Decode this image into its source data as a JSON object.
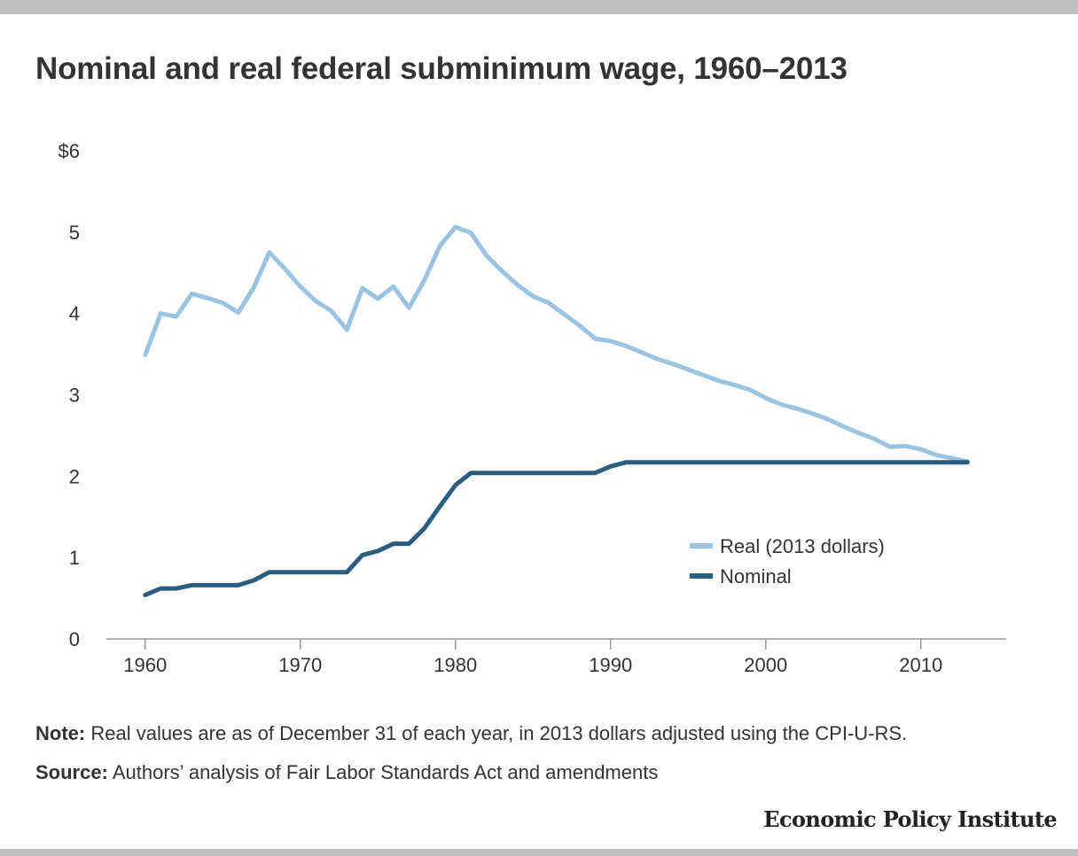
{
  "title": "Nominal and real federal subminimum wage, 1960–2013",
  "note": {
    "label": "Note:",
    "text": "Real values are as of December 31 of each year, in 2013 dollars adjusted using the CPI-U-RS."
  },
  "source": {
    "label": "Source:",
    "text": "Authors’ analysis of Fair Labor Standards Act and amendments"
  },
  "brand": "Economic Policy Institute",
  "colors": {
    "real": "#9bc4e2",
    "nominal": "#2a5d7e",
    "axis": "#999999",
    "text": "#333333"
  },
  "chart_data": {
    "type": "line",
    "title": "Nominal and real federal subminimum wage, 1960–2013",
    "xlabel": "",
    "ylabel": "",
    "xlim": [
      1957.5,
      2015.5
    ],
    "ylim": [
      0,
      6
    ],
    "x_ticks": [
      1960,
      1970,
      1980,
      1990,
      2000,
      2010
    ],
    "x_tick_labels": [
      "1960",
      "1970",
      "1980",
      "1990",
      "2000",
      "2010"
    ],
    "y_ticks": [
      0,
      1,
      2,
      3,
      4,
      5,
      6
    ],
    "y_tick_labels": [
      "0",
      "1",
      "2",
      "3",
      "4",
      "5",
      "$6"
    ],
    "grid": false,
    "legend_position": "center-right",
    "x": [
      1960,
      1961,
      1962,
      1963,
      1964,
      1965,
      1966,
      1967,
      1968,
      1969,
      1970,
      1971,
      1972,
      1973,
      1974,
      1975,
      1976,
      1977,
      1978,
      1979,
      1980,
      1981,
      1982,
      1983,
      1984,
      1985,
      1986,
      1987,
      1988,
      1989,
      1990,
      1991,
      1992,
      1993,
      1994,
      1995,
      1996,
      1997,
      1998,
      1999,
      2000,
      2001,
      2002,
      2003,
      2004,
      2005,
      2006,
      2007,
      2008,
      2009,
      2010,
      2011,
      2012,
      2013
    ],
    "series": [
      {
        "name": "Real (2013 dollars)",
        "values": [
          3.49,
          4.0,
          3.96,
          4.24,
          4.19,
          4.13,
          4.01,
          4.32,
          4.75,
          4.55,
          4.33,
          4.15,
          4.03,
          3.8,
          4.31,
          4.18,
          4.33,
          4.07,
          4.41,
          4.83,
          5.06,
          4.99,
          4.71,
          4.52,
          4.35,
          4.21,
          4.13,
          3.99,
          3.85,
          3.69,
          3.66,
          3.6,
          3.52,
          3.44,
          3.38,
          3.31,
          3.24,
          3.17,
          3.12,
          3.06,
          2.96,
          2.88,
          2.83,
          2.77,
          2.7,
          2.61,
          2.53,
          2.46,
          2.36,
          2.37,
          2.33,
          2.26,
          2.22,
          2.18
        ]
      },
      {
        "name": "Nominal",
        "values": [
          0.54,
          0.62,
          0.62,
          0.66,
          0.66,
          0.66,
          0.66,
          0.72,
          0.82,
          0.82,
          0.82,
          0.82,
          0.82,
          0.82,
          1.03,
          1.08,
          1.17,
          1.17,
          1.36,
          1.63,
          1.89,
          2.04,
          2.04,
          2.04,
          2.04,
          2.04,
          2.04,
          2.04,
          2.04,
          2.04,
          2.12,
          2.17,
          2.17,
          2.17,
          2.17,
          2.17,
          2.17,
          2.17,
          2.17,
          2.17,
          2.17,
          2.17,
          2.17,
          2.17,
          2.17,
          2.17,
          2.17,
          2.17,
          2.17,
          2.17,
          2.17,
          2.17,
          2.17,
          2.17
        ]
      }
    ]
  }
}
